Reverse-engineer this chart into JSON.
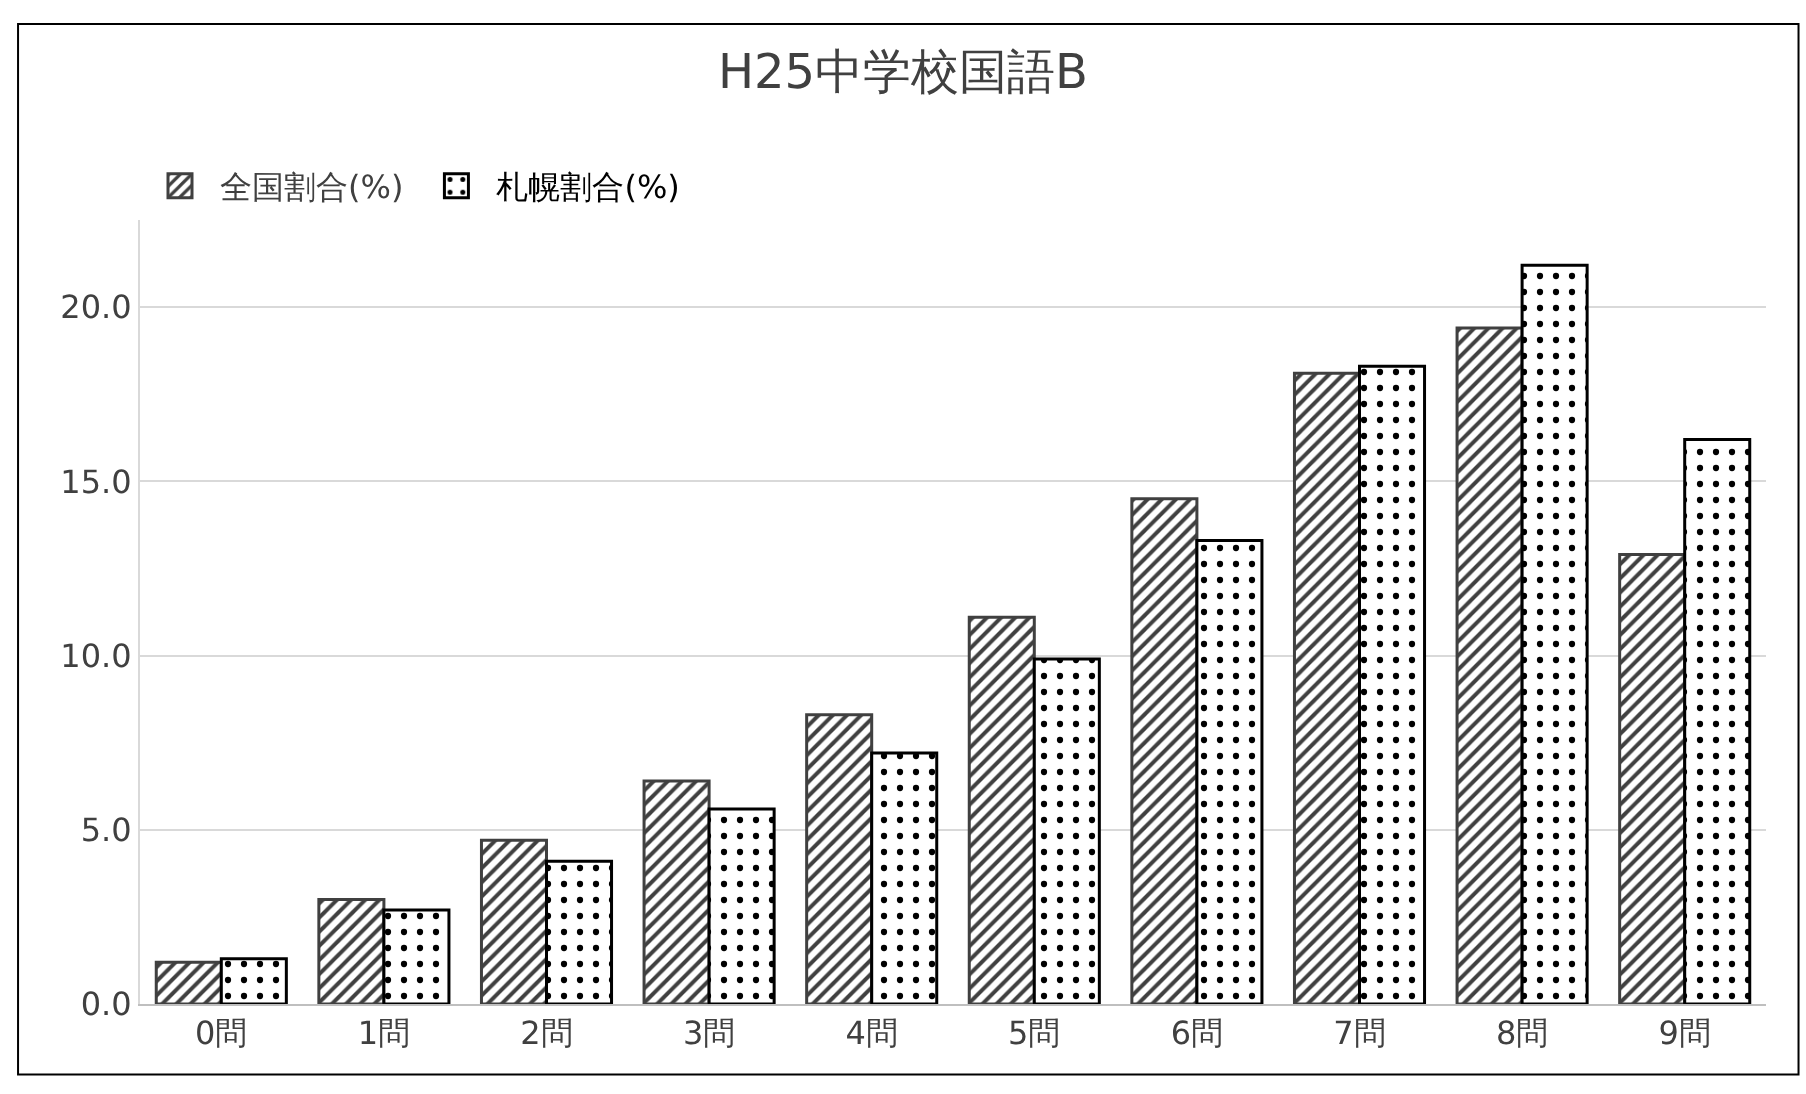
{
  "chart_data": {
    "type": "bar",
    "title": "H25中学校国語B",
    "categories": [
      "0問",
      "1問",
      "2問",
      "3問",
      "4問",
      "5問",
      "6問",
      "7問",
      "8問",
      "9問"
    ],
    "series": [
      {
        "name": "全国割合(%)",
        "color": "#404040",
        "values": [
          1.2,
          3.0,
          4.7,
          6.4,
          8.3,
          11.1,
          14.5,
          18.1,
          19.4,
          12.9
        ]
      },
      {
        "name": "札幌割合(%)",
        "color": "#000000",
        "values": [
          1.3,
          2.7,
          4.1,
          5.6,
          7.2,
          9.9,
          13.3,
          18.3,
          21.2,
          16.2
        ]
      }
    ],
    "ylim": [
      0,
      22.5
    ],
    "yticks": [
      {
        "value": 0,
        "label": "0.0"
      },
      {
        "value": 5,
        "label": "5.0"
      },
      {
        "value": 10,
        "label": "10.0"
      },
      {
        "value": 15,
        "label": "15.0"
      },
      {
        "value": 20,
        "label": "20.0"
      }
    ],
    "grid": "y",
    "legend": "top left"
  }
}
